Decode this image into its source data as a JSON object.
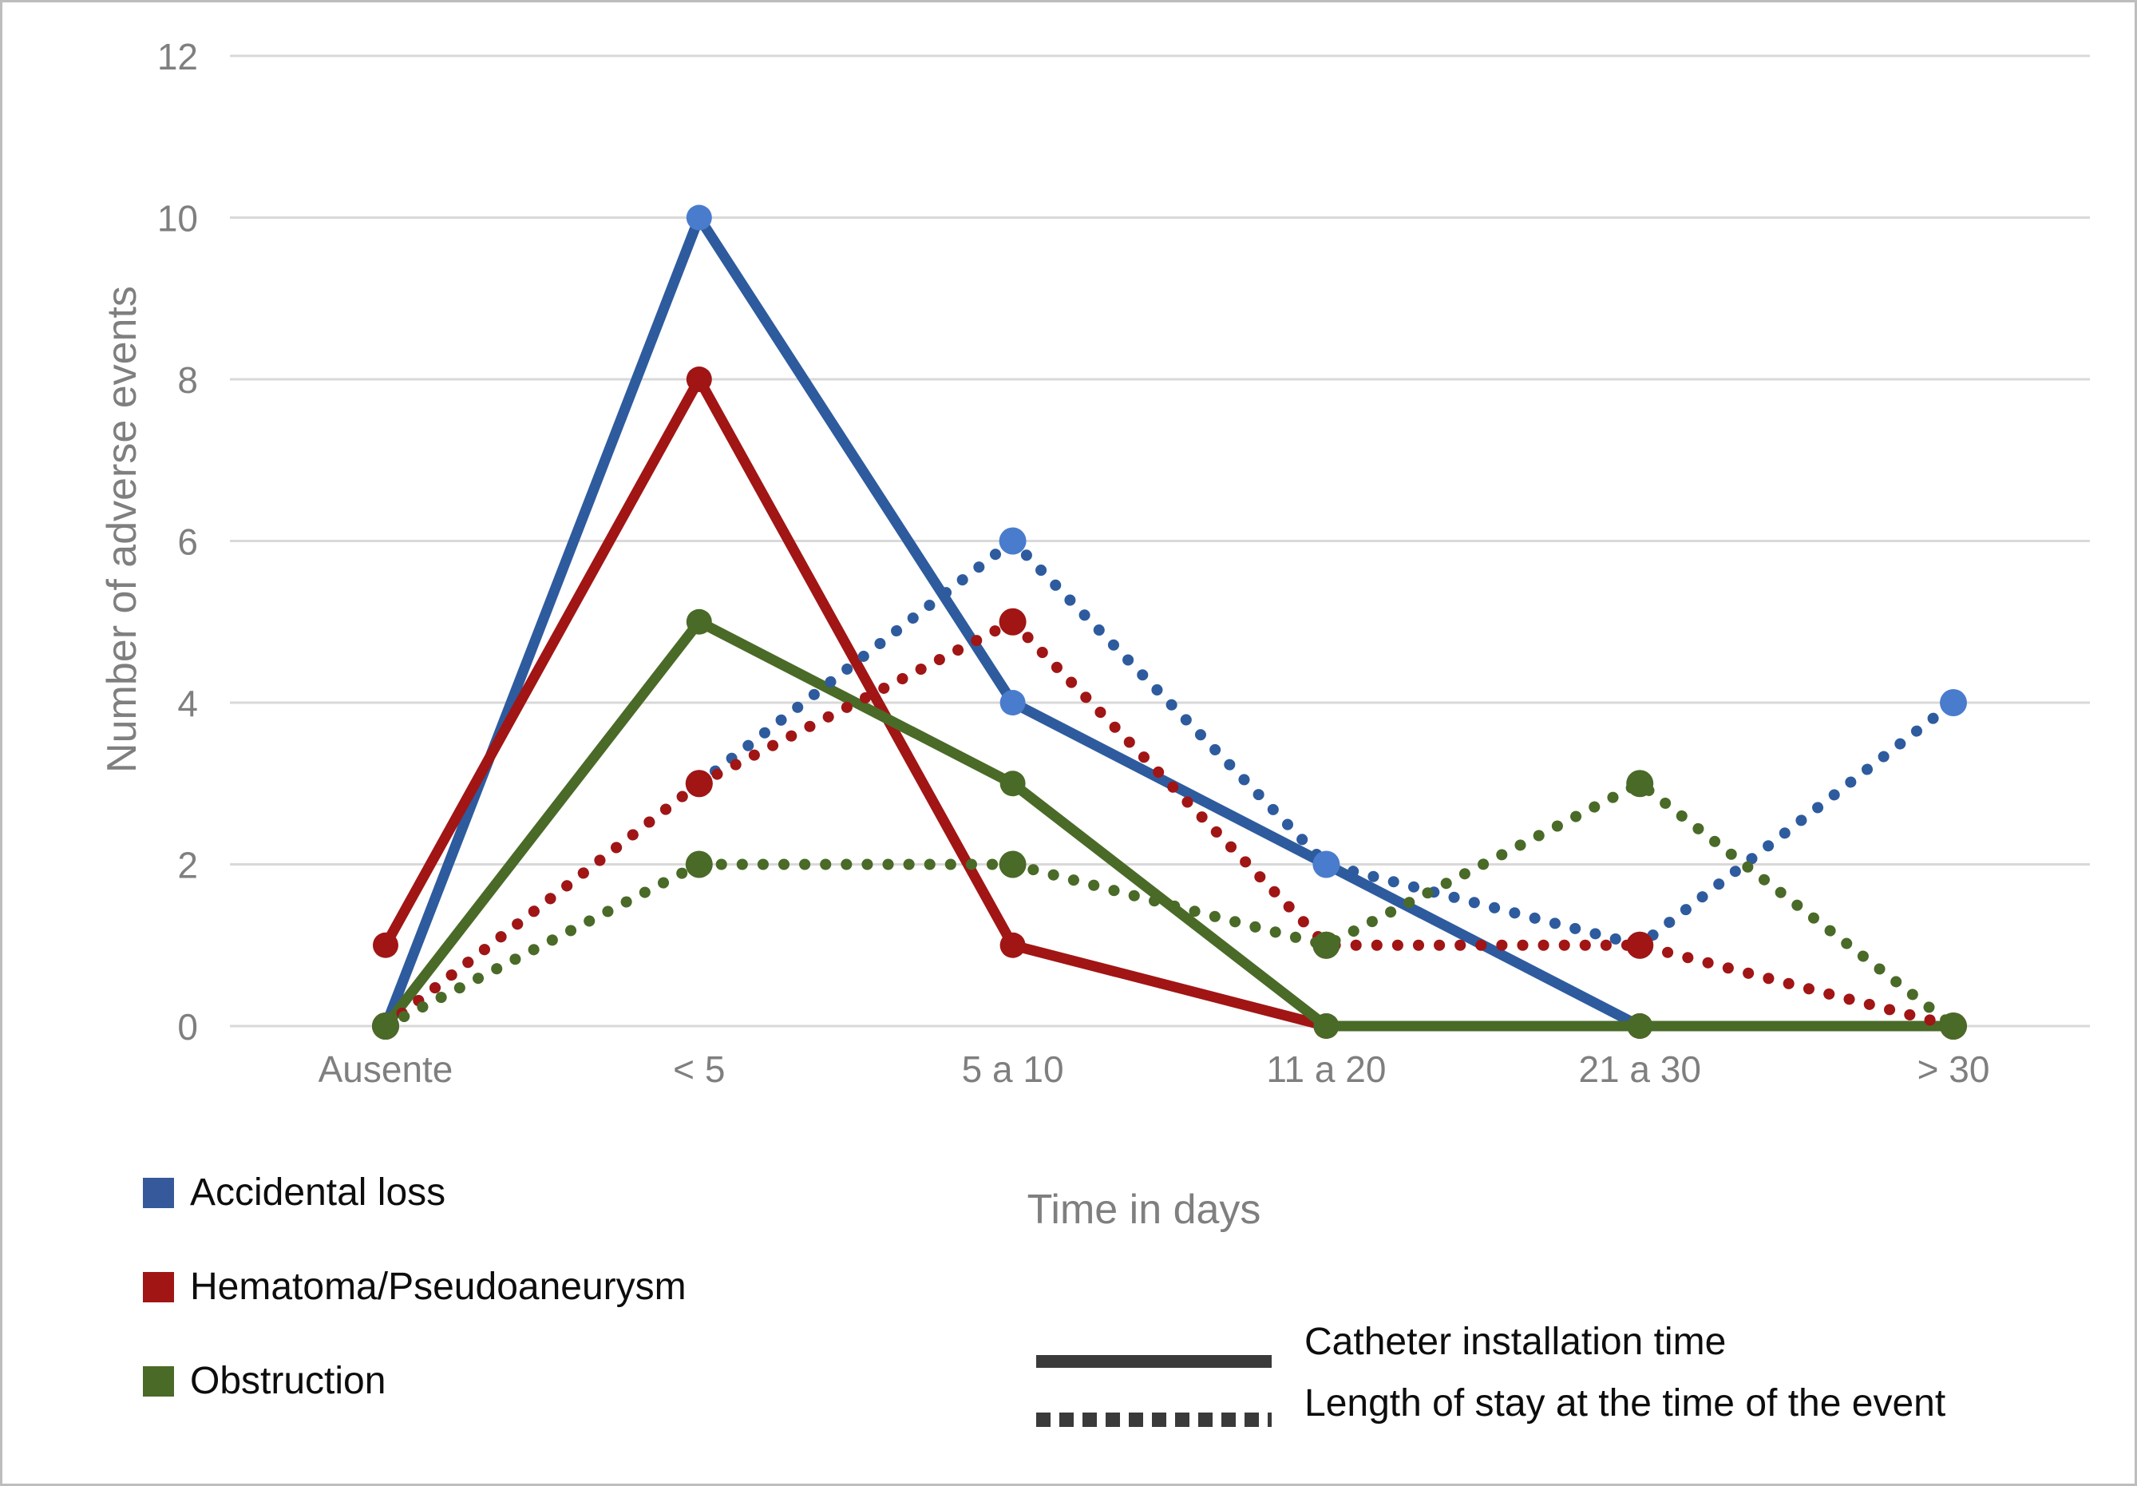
{
  "chart_data": {
    "type": "line",
    "title": "",
    "categories": [
      "Ausente",
      "< 5",
      "5 a 10",
      "11 a 20",
      "21 a 30",
      "> 30"
    ],
    "xlabel": "Time in days",
    "ylabel": "Number of adverse events",
    "ylim": [
      0,
      12
    ],
    "yticks": [
      0,
      2,
      4,
      6,
      8,
      10,
      12
    ],
    "grid": "horizontal",
    "legend_position": "bottom-left",
    "series": [
      {
        "name": "Accidental loss",
        "line_style": "solid",
        "meaning": "Catheter installation time",
        "color": "#2e5b9e",
        "marker_color": "#4a7ccd",
        "values": [
          0,
          10,
          4,
          2,
          0,
          0
        ]
      },
      {
        "name": "Hematoma/Pseudoaneurysm",
        "line_style": "solid",
        "meaning": "Catheter installation time",
        "color": "#a11515",
        "marker_color": "#a11515",
        "values": [
          1,
          8,
          1,
          0,
          0,
          0
        ]
      },
      {
        "name": "Obstruction",
        "line_style": "solid",
        "meaning": "Catheter installation time",
        "color": "#4a6a28",
        "marker_color": "#4a6a28",
        "values": [
          0,
          5,
          3,
          0,
          0,
          0
        ]
      },
      {
        "name": "Accidental loss",
        "line_style": "dotted",
        "meaning": "Length of stay at the time of the event",
        "color": "#2e5b9e",
        "marker_color": "#4a7ccd",
        "values": [
          0,
          3,
          6,
          2,
          1,
          4
        ]
      },
      {
        "name": "Hematoma/Pseudoaneurysm",
        "line_style": "dotted",
        "meaning": "Length of stay at the time of the event",
        "color": "#a11515",
        "marker_color": "#a11515",
        "values": [
          0,
          3,
          5,
          1,
          1,
          0
        ]
      },
      {
        "name": "Obstruction",
        "line_style": "dotted",
        "meaning": "Length of stay at the time of the event",
        "color": "#4a6a28",
        "marker_color": "#4a6a28",
        "values": [
          0,
          2,
          2,
          1,
          3,
          0
        ]
      }
    ]
  },
  "axes": {
    "y_title": "Number of adverse events",
    "x_title": "Time in days",
    "tick_color": "#7f7f7f",
    "gridline_color": "#d9d9d9"
  },
  "legend": {
    "series": [
      {
        "label": "Accidental loss",
        "color": "#35599a"
      },
      {
        "label": "Hematoma/Pseudoaneurysm",
        "color": "#a11515"
      },
      {
        "label": "Obstruction",
        "color": "#4a6a28"
      }
    ],
    "styles": [
      {
        "label": "Catheter installation time",
        "style": "solid"
      },
      {
        "label": "Length of stay at the time of the event",
        "style": "dotted"
      }
    ]
  }
}
